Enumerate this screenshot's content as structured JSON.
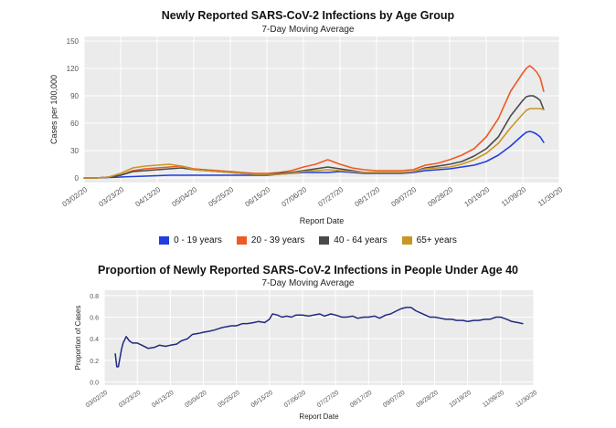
{
  "chart_data": [
    {
      "type": "line",
      "title": "Newly Reported SARS-CoV-2 Infections by Age Group",
      "subtitle": "7-Day Moving Average",
      "xlabel": "Report Date",
      "ylabel": "Cases per 100,000",
      "ylim": [
        -5,
        155
      ],
      "xlim": [
        0,
        273
      ],
      "yticks": [
        "0",
        "30",
        "60",
        "90",
        "120",
        "150"
      ],
      "xticks": [
        {
          "label": "03/02/20",
          "day": 0
        },
        {
          "label": "03/23/20",
          "day": 21
        },
        {
          "label": "04/13/20",
          "day": 42
        },
        {
          "label": "05/04/20",
          "day": 63
        },
        {
          "label": "05/25/20",
          "day": 84
        },
        {
          "label": "06/15/20",
          "day": 105
        },
        {
          "label": "07/06/20",
          "day": 126
        },
        {
          "label": "07/27/20",
          "day": 147
        },
        {
          "label": "08/17/20",
          "day": 168
        },
        {
          "label": "09/07/20",
          "day": 189
        },
        {
          "label": "09/28/20",
          "day": 210
        },
        {
          "label": "10/19/20",
          "day": 231
        },
        {
          "label": "11/09/20",
          "day": 252
        },
        {
          "label": "11/30/20",
          "day": 273
        }
      ],
      "x": [
        0,
        7,
        14,
        21,
        28,
        35,
        42,
        49,
        56,
        63,
        70,
        77,
        84,
        91,
        98,
        105,
        112,
        119,
        126,
        133,
        140,
        147,
        154,
        161,
        168,
        175,
        182,
        189,
        196,
        203,
        210,
        217,
        224,
        231,
        238,
        245,
        252,
        254,
        256,
        258,
        260,
        262,
        264
      ],
      "series": [
        {
          "name": "0 - 19 years",
          "color": "#1f3fe0",
          "values": [
            0,
            0,
            0.5,
            1,
            1.5,
            2,
            2.5,
            3,
            3,
            3,
            3,
            3,
            3,
            3,
            3,
            3,
            4,
            5,
            6,
            6,
            6,
            7,
            6,
            5,
            5,
            5,
            5,
            6,
            8,
            9,
            10,
            12,
            14,
            18,
            25,
            35,
            47,
            50,
            51,
            50,
            48,
            45,
            39
          ]
        },
        {
          "name": "20 - 39 years",
          "color": "#ee5a24",
          "values": [
            0,
            0,
            1,
            3,
            8,
            10,
            11,
            12,
            13,
            10,
            9,
            8,
            7,
            6,
            5,
            5,
            6,
            8,
            12,
            15,
            20,
            15,
            11,
            9,
            8,
            8,
            8,
            9,
            14,
            16,
            20,
            25,
            32,
            45,
            65,
            95,
            115,
            120,
            123,
            120,
            116,
            110,
            95
          ]
        },
        {
          "name": "40 - 64 years",
          "color": "#4a4a4a",
          "values": [
            0,
            0,
            1,
            3,
            7,
            8,
            9,
            10,
            11,
            9,
            8,
            7,
            6,
            5,
            4,
            4,
            5,
            6,
            8,
            10,
            12,
            10,
            8,
            6,
            6,
            6,
            6,
            7,
            11,
            13,
            15,
            18,
            24,
            32,
            45,
            68,
            85,
            89,
            90,
            90,
            88,
            85,
            75
          ]
        },
        {
          "name": "65+ years",
          "color": "#c99626",
          "values": [
            0,
            0,
            1,
            5,
            11,
            13,
            14,
            15,
            13,
            9,
            8,
            7,
            6,
            5,
            4,
            4,
            4,
            5,
            7,
            8,
            9,
            8,
            7,
            6,
            6,
            6,
            6,
            7,
            10,
            11,
            12,
            15,
            20,
            27,
            38,
            55,
            70,
            74,
            76,
            76,
            76,
            76,
            75
          ]
        }
      ],
      "legend": "bottom"
    },
    {
      "type": "line",
      "title": "Proportion of Newly Reported SARS-CoV-2 Infections in People Under Age 40",
      "subtitle": "7-Day Moving Average",
      "xlabel": "Report Date",
      "ylabel": "Proportion of Cases",
      "ylim": [
        -0.03,
        0.85
      ],
      "xlim": [
        0,
        273
      ],
      "yticks": [
        "0.0",
        "0.2",
        "0.4",
        "0.6",
        "0.8"
      ],
      "xticks": [
        {
          "label": "03/02/20",
          "day": 0
        },
        {
          "label": "03/23/20",
          "day": 21
        },
        {
          "label": "04/13/20",
          "day": 42
        },
        {
          "label": "05/04/20",
          "day": 63
        },
        {
          "label": "05/25/20",
          "day": 84
        },
        {
          "label": "06/15/20",
          "day": 105
        },
        {
          "label": "07/06/20",
          "day": 126
        },
        {
          "label": "07/27/20",
          "day": 147
        },
        {
          "label": "08/17/20",
          "day": 168
        },
        {
          "label": "09/07/20",
          "day": 189
        },
        {
          "label": "09/28/20",
          "day": 210
        },
        {
          "label": "10/19/20",
          "day": 231
        },
        {
          "label": "11/09/20",
          "day": 252
        },
        {
          "label": "11/30/20",
          "day": 273
        }
      ],
      "x": [
        7,
        8,
        9,
        10,
        11,
        12,
        14,
        16,
        18,
        21,
        24,
        28,
        32,
        35,
        39,
        42,
        46,
        49,
        53,
        56,
        60,
        63,
        67,
        70,
        74,
        77,
        81,
        84,
        88,
        91,
        95,
        98,
        102,
        105,
        107,
        110,
        113,
        116,
        119,
        122,
        126,
        130,
        133,
        137,
        140,
        144,
        147,
        151,
        154,
        158,
        161,
        165,
        168,
        172,
        175,
        179,
        182,
        186,
        189,
        192,
        195,
        198,
        201,
        204,
        207,
        210,
        214,
        217,
        221,
        224,
        228,
        231,
        235,
        238,
        242,
        245,
        249,
        252,
        256,
        259,
        263,
        266
      ],
      "series": [
        {
          "name": "Under 40",
          "color": "#1f2a80",
          "values": [
            0.26,
            0.14,
            0.14,
            0.22,
            0.3,
            0.36,
            0.42,
            0.38,
            0.36,
            0.36,
            0.34,
            0.31,
            0.32,
            0.34,
            0.33,
            0.34,
            0.35,
            0.38,
            0.4,
            0.44,
            0.45,
            0.46,
            0.47,
            0.48,
            0.5,
            0.51,
            0.52,
            0.52,
            0.54,
            0.54,
            0.55,
            0.56,
            0.55,
            0.58,
            0.63,
            0.62,
            0.6,
            0.61,
            0.6,
            0.62,
            0.62,
            0.61,
            0.62,
            0.63,
            0.61,
            0.63,
            0.62,
            0.6,
            0.6,
            0.61,
            0.59,
            0.6,
            0.6,
            0.61,
            0.59,
            0.62,
            0.63,
            0.66,
            0.68,
            0.69,
            0.69,
            0.66,
            0.64,
            0.62,
            0.6,
            0.6,
            0.59,
            0.58,
            0.58,
            0.57,
            0.57,
            0.56,
            0.57,
            0.57,
            0.58,
            0.58,
            0.6,
            0.6,
            0.58,
            0.56,
            0.55,
            0.54
          ]
        }
      ]
    }
  ]
}
